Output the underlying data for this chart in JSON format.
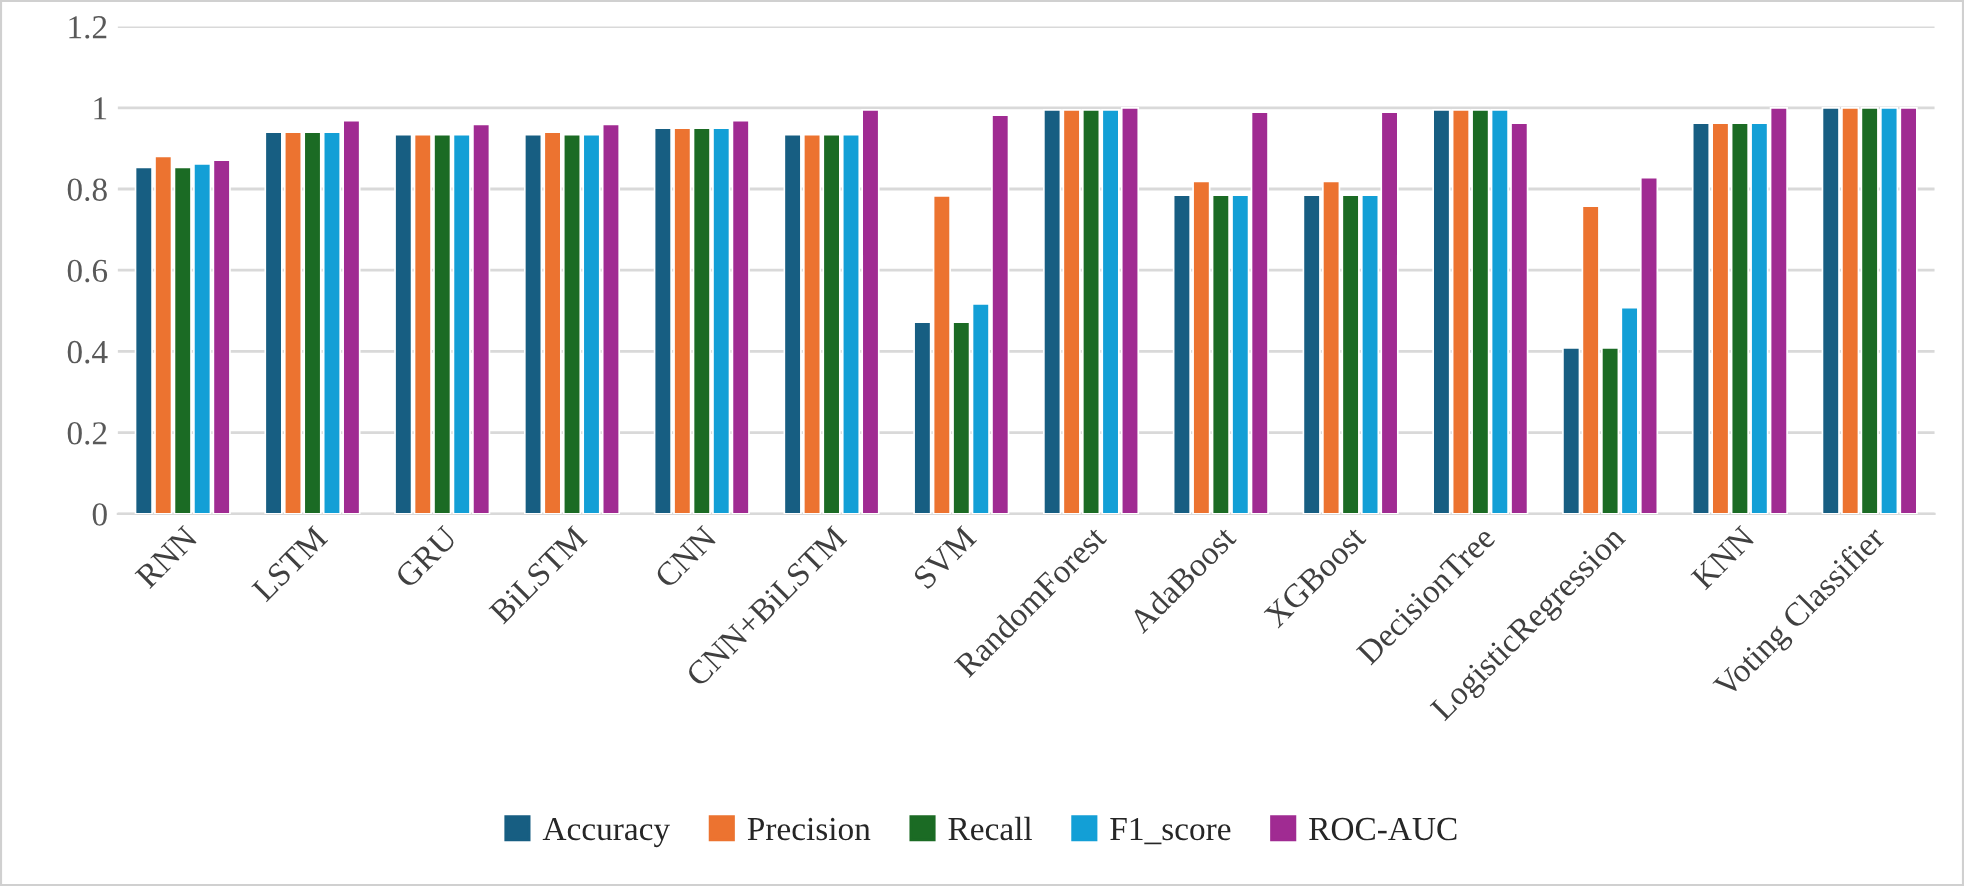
{
  "chart_data": {
    "type": "bar",
    "categories": [
      "RNN",
      "LSTM",
      "GRU",
      "BiLSTM",
      "CNN",
      "CNN+BiLSTM",
      "SVM",
      "RandomForest",
      "AdaBoost",
      "XGBoost",
      "DecisionTree",
      "LogisticRegression",
      "KNN",
      "Voting Classifier"
    ],
    "series": [
      {
        "name": "Accuracy",
        "color": "#175e82",
        "values": [
          0.853,
          0.94,
          0.934,
          0.934,
          0.95,
          0.934,
          0.472,
          0.995,
          0.785,
          0.785,
          0.995,
          0.409,
          0.962,
          1.0
        ]
      },
      {
        "name": "Precision",
        "color": "#ec7330",
        "values": [
          0.88,
          0.94,
          0.934,
          0.94,
          0.95,
          0.934,
          0.783,
          0.995,
          0.819,
          0.819,
          0.995,
          0.758,
          0.962,
          1.0
        ]
      },
      {
        "name": "Recall",
        "color": "#1b6b24",
        "values": [
          0.853,
          0.94,
          0.934,
          0.934,
          0.95,
          0.934,
          0.472,
          0.995,
          0.785,
          0.785,
          0.995,
          0.409,
          0.962,
          1.0
        ]
      },
      {
        "name": "F1_score",
        "color": "#139fd6",
        "values": [
          0.862,
          0.94,
          0.934,
          0.934,
          0.95,
          0.934,
          0.517,
          0.995,
          0.785,
          0.785,
          0.995,
          0.508,
          0.962,
          1.0
        ]
      },
      {
        "name": "ROC-AUC",
        "color": "#a02b92",
        "values": [
          0.871,
          0.968,
          0.959,
          0.959,
          0.968,
          0.995,
          0.982,
          1.0,
          0.989,
          0.989,
          0.962,
          0.828,
          1.0,
          1.0
        ]
      }
    ],
    "ylim": [
      0,
      1.2
    ],
    "yticks": [
      0,
      {
        "value": 0.2,
        "label": "0.2"
      },
      {
        "value": 0.4,
        "label": "0.4"
      },
      {
        "value": 0.6,
        "label": "0.6"
      },
      {
        "value": 0.8,
        "label": "0.8"
      },
      1,
      {
        "value": 1.2,
        "label": "1.2"
      }
    ],
    "grid": "y",
    "legend": "bottom"
  }
}
